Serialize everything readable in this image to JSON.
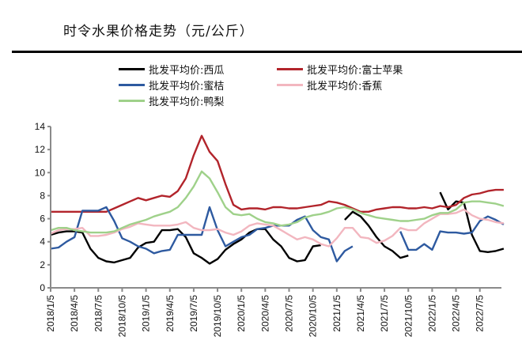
{
  "chart_data": {
    "type": "line",
    "title": "时令水果价格走势（元/公斤）",
    "xlabel": "",
    "ylabel": "",
    "ylim": [
      0,
      14
    ],
    "yticks": [
      0,
      2,
      4,
      6,
      8,
      10,
      12,
      14
    ],
    "grid": false,
    "legend_position": "top",
    "xtick_labels": [
      "2018/1/5",
      "2018/4/5",
      "2018/7/5",
      "2018/10/5",
      "2019/1/5",
      "2019/4/5",
      "2019/7/5",
      "2019/10/5",
      "2020/1/5",
      "2020/4/5",
      "2020/7/5",
      "2020/10/5",
      "2021/1/5",
      "2021/4/5",
      "2021/7/5",
      "2021/10/5",
      "2022/1/5",
      "2022/4/5",
      "2022/7/5"
    ],
    "x": [
      "2018/1",
      "2018/2",
      "2018/3",
      "2018/4",
      "2018/5",
      "2018/6",
      "2018/7",
      "2018/8",
      "2018/9",
      "2018/10",
      "2018/11",
      "2018/12",
      "2019/1",
      "2019/2",
      "2019/3",
      "2019/4",
      "2019/5",
      "2019/6",
      "2019/7",
      "2019/8",
      "2019/9",
      "2019/10",
      "2019/11",
      "2019/12",
      "2020/1",
      "2020/2",
      "2020/3",
      "2020/4",
      "2020/5",
      "2020/6",
      "2020/7",
      "2020/8",
      "2020/9",
      "2020/10",
      "2020/11",
      "2020/12",
      "2021/1",
      "2021/2",
      "2021/3",
      "2021/4",
      "2021/5",
      "2021/6",
      "2021/7",
      "2021/8",
      "2021/9",
      "2021/10",
      "2021/11",
      "2021/12",
      "2022/1",
      "2022/2",
      "2022/3",
      "2022/4",
      "2022/5",
      "2022/6",
      "2022/7",
      "2022/8",
      "2022/9",
      "2022/10"
    ],
    "series": [
      {
        "name": "批发平均价:西瓜",
        "color": "#000000",
        "values": [
          4.6,
          4.8,
          4.9,
          4.9,
          4.8,
          3.4,
          2.6,
          2.3,
          2.2,
          2.4,
          2.6,
          3.5,
          3.9,
          4.0,
          5.0,
          5.0,
          5.1,
          4.4,
          3.0,
          2.6,
          2.1,
          2.5,
          3.3,
          3.8,
          4.2,
          4.8,
          5.1,
          5.1,
          4.2,
          3.6,
          2.6,
          2.3,
          2.4,
          3.6,
          3.7,
          null,
          null,
          5.9,
          6.6,
          6.2,
          5.4,
          4.4,
          3.6,
          3.2,
          2.6,
          2.8,
          null,
          null,
          null,
          8.3,
          6.8,
          7.5,
          7.4,
          4.6,
          3.2,
          3.1,
          3.2,
          3.4
        ]
      },
      {
        "name": "批发平均价:富士苹果",
        "color": "#b2242b",
        "values": [
          6.6,
          6.6,
          6.6,
          6.6,
          6.6,
          6.6,
          6.6,
          6.6,
          6.9,
          7.2,
          7.5,
          7.8,
          7.6,
          7.8,
          8.0,
          7.9,
          8.4,
          9.5,
          11.5,
          13.2,
          11.8,
          11.0,
          9.0,
          7.2,
          6.8,
          6.9,
          6.9,
          6.8,
          7.0,
          7.0,
          6.9,
          6.9,
          7.0,
          7.1,
          7.2,
          7.5,
          7.4,
          7.2,
          6.9,
          6.6,
          6.6,
          6.8,
          6.9,
          7.0,
          7.0,
          6.9,
          6.9,
          7.0,
          6.9,
          7.1,
          7.0,
          7.2,
          7.8,
          8.1,
          8.2,
          8.4,
          8.5,
          8.5
        ]
      },
      {
        "name": "批发平均价:蜜桔",
        "color": "#2e5aa0",
        "values": [
          3.4,
          3.5,
          4.0,
          4.4,
          6.7,
          6.7,
          6.7,
          7.0,
          5.8,
          4.3,
          4.0,
          3.6,
          3.4,
          3.0,
          3.2,
          3.3,
          4.6,
          4.6,
          4.6,
          4.6,
          7.0,
          5.0,
          3.6,
          4.0,
          4.4,
          4.6,
          5.1,
          5.2,
          5.4,
          5.4,
          5.4,
          5.9,
          6.2,
          5.0,
          4.4,
          4.2,
          2.3,
          3.2,
          3.6,
          null,
          null,
          null,
          null,
          null,
          4.9,
          3.3,
          3.3,
          3.8,
          3.3,
          4.9,
          4.8,
          4.8,
          4.7,
          4.8,
          5.8,
          6.2,
          5.9,
          5.5
        ]
      },
      {
        "name": "批发平均价:香蕉",
        "color": "#f2b6bf",
        "values": [
          4.7,
          5.0,
          5.1,
          5.1,
          5.2,
          4.5,
          4.5,
          4.6,
          4.8,
          5.1,
          5.3,
          5.6,
          5.5,
          5.4,
          5.4,
          5.4,
          5.5,
          5.7,
          5.2,
          5.0,
          5.0,
          5.1,
          4.8,
          4.6,
          4.9,
          5.4,
          5.6,
          5.5,
          5.4,
          5.0,
          4.6,
          4.2,
          4.4,
          4.2,
          3.8,
          3.6,
          4.3,
          5.2,
          5.2,
          4.4,
          4.3,
          3.9,
          4.1,
          4.5,
          5.2,
          5.0,
          5.0,
          5.6,
          6.0,
          6.4,
          6.4,
          6.5,
          6.8,
          6.3,
          6.0,
          5.9,
          5.7,
          5.6
        ]
      },
      {
        "name": "批发平均价:鸭梨",
        "color": "#9fd18a",
        "values": [
          5.0,
          5.2,
          5.2,
          5.0,
          4.9,
          4.8,
          4.8,
          4.8,
          4.9,
          5.2,
          5.5,
          5.7,
          5.9,
          6.2,
          6.4,
          6.6,
          7.0,
          7.8,
          8.8,
          10.1,
          9.5,
          8.3,
          7.0,
          6.4,
          6.3,
          6.4,
          6.0,
          5.7,
          5.6,
          5.4,
          5.5,
          5.7,
          6.1,
          6.3,
          6.4,
          6.6,
          6.9,
          7.0,
          6.8,
          6.5,
          6.3,
          6.1,
          6.0,
          5.9,
          5.8,
          5.8,
          5.9,
          6.0,
          6.3,
          6.5,
          6.5,
          6.8,
          7.4,
          7.5,
          7.5,
          7.4,
          7.3,
          7.1
        ]
      }
    ]
  }
}
